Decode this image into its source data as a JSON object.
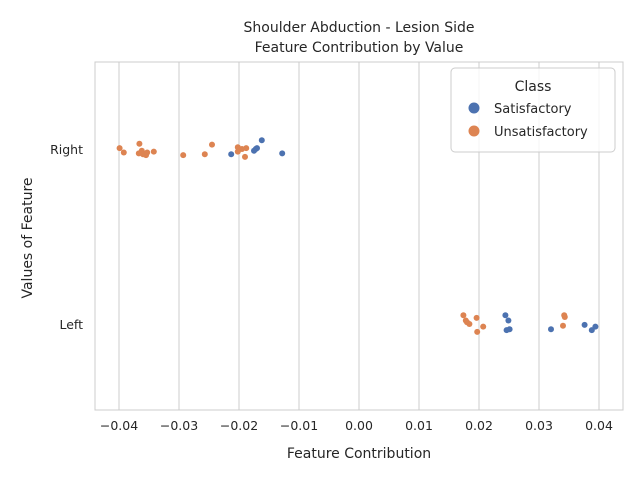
{
  "chart_data": {
    "type": "scatter",
    "title_line1": "Shoulder Abduction - Lesion Side",
    "title_line2": "Feature Contribution by Value",
    "xlabel": "Feature Contribution",
    "ylabel": "Values of Feature",
    "xlim": [
      -0.044,
      0.044
    ],
    "x_ticks": [
      -0.04,
      -0.03,
      -0.02,
      -0.01,
      0.0,
      0.01,
      0.02,
      0.03,
      0.04
    ],
    "x_tick_labels": [
      "−0.04",
      "−0.03",
      "−0.02",
      "−0.01",
      "0.00",
      "0.01",
      "0.02",
      "0.03",
      "0.04"
    ],
    "categories": [
      "Right",
      "Left"
    ],
    "grid": true,
    "legend": {
      "title": "Class",
      "position": "top-right",
      "entries": [
        {
          "name": "Satisfactory",
          "color": "#4c72b0"
        },
        {
          "name": "Unsatisfactory",
          "color": "#dd8452"
        }
      ]
    },
    "series": [
      {
        "name": "Satisfactory",
        "color": "#4c72b0",
        "points": [
          {
            "x": -0.0162,
            "category": "Right",
            "jitter": -0.1
          },
          {
            "x": -0.017,
            "category": "Right",
            "jitter": -0.01
          },
          {
            "x": -0.0172,
            "category": "Right",
            "jitter": 0.0
          },
          {
            "x": -0.0175,
            "category": "Right",
            "jitter": 0.02
          },
          {
            "x": -0.0213,
            "category": "Right",
            "jitter": 0.06
          },
          {
            "x": -0.0128,
            "category": "Right",
            "jitter": 0.05
          },
          {
            "x": 0.0244,
            "category": "Left",
            "jitter": -0.1
          },
          {
            "x": 0.0249,
            "category": "Left",
            "jitter": -0.04
          },
          {
            "x": 0.0251,
            "category": "Left",
            "jitter": 0.06
          },
          {
            "x": 0.0246,
            "category": "Left",
            "jitter": 0.07
          },
          {
            "x": 0.032,
            "category": "Left",
            "jitter": 0.06
          },
          {
            "x": 0.0376,
            "category": "Left",
            "jitter": 0.01
          },
          {
            "x": 0.0394,
            "category": "Left",
            "jitter": 0.03
          },
          {
            "x": 0.0388,
            "category": "Left",
            "jitter": 0.07
          }
        ]
      },
      {
        "name": "Unsatisfactory",
        "color": "#dd8452",
        "points": [
          {
            "x": -0.0366,
            "category": "Right",
            "jitter": -0.06
          },
          {
            "x": -0.0399,
            "category": "Right",
            "jitter": -0.01
          },
          {
            "x": -0.0392,
            "category": "Right",
            "jitter": 0.04
          },
          {
            "x": -0.0362,
            "category": "Right",
            "jitter": 0.02
          },
          {
            "x": -0.0367,
            "category": "Right",
            "jitter": 0.05
          },
          {
            "x": -0.036,
            "category": "Right",
            "jitter": 0.06
          },
          {
            "x": -0.0355,
            "category": "Right",
            "jitter": 0.07
          },
          {
            "x": -0.0353,
            "category": "Right",
            "jitter": 0.04
          },
          {
            "x": -0.0342,
            "category": "Right",
            "jitter": 0.03
          },
          {
            "x": -0.0293,
            "category": "Right",
            "jitter": 0.07
          },
          {
            "x": -0.0257,
            "category": "Right",
            "jitter": 0.06
          },
          {
            "x": -0.0245,
            "category": "Right",
            "jitter": -0.05
          },
          {
            "x": -0.0202,
            "category": "Right",
            "jitter": -0.02
          },
          {
            "x": -0.0195,
            "category": "Right",
            "jitter": 0.0
          },
          {
            "x": -0.0188,
            "category": "Right",
            "jitter": -0.01
          },
          {
            "x": -0.0202,
            "category": "Right",
            "jitter": 0.03
          },
          {
            "x": -0.019,
            "category": "Right",
            "jitter": 0.09
          },
          {
            "x": 0.0174,
            "category": "Left",
            "jitter": -0.1
          },
          {
            "x": 0.0196,
            "category": "Left",
            "jitter": -0.07
          },
          {
            "x": 0.0178,
            "category": "Left",
            "jitter": -0.04
          },
          {
            "x": 0.018,
            "category": "Left",
            "jitter": -0.02
          },
          {
            "x": 0.0184,
            "category": "Left",
            "jitter": 0.0
          },
          {
            "x": 0.0207,
            "category": "Left",
            "jitter": 0.03
          },
          {
            "x": 0.0197,
            "category": "Left",
            "jitter": 0.09
          },
          {
            "x": 0.0342,
            "category": "Left",
            "jitter": -0.1
          },
          {
            "x": 0.0343,
            "category": "Left",
            "jitter": -0.08
          },
          {
            "x": 0.034,
            "category": "Left",
            "jitter": 0.02
          }
        ]
      }
    ]
  }
}
